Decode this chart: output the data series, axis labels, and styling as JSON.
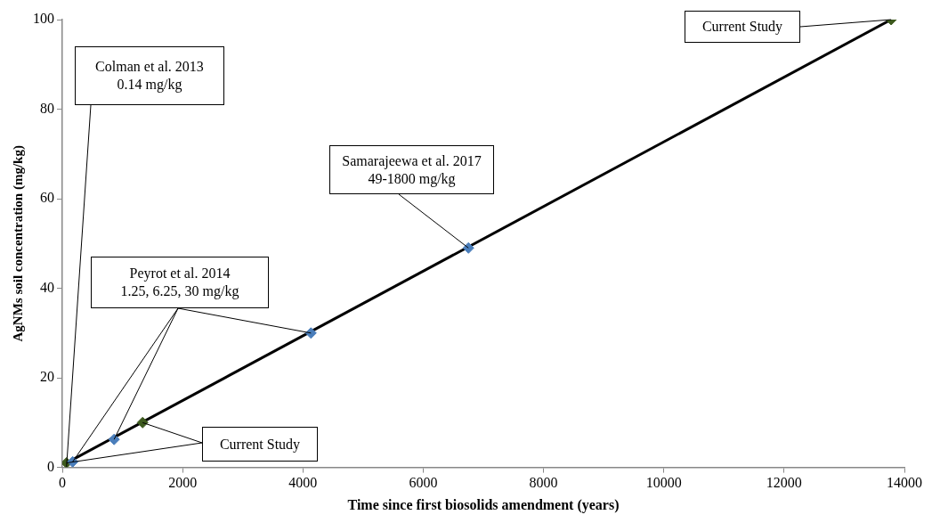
{
  "chart_data": {
    "type": "scatter",
    "xlabel": "Time since first biosolids amendment (years)",
    "ylabel": "AgNMs soil concentration (mg/kg)",
    "xlim": [
      0,
      14000
    ],
    "xticks": [
      0,
      2000,
      4000,
      6000,
      8000,
      10000,
      12000,
      14000
    ],
    "ylim": [
      0,
      100
    ],
    "yticks": [
      0,
      20,
      40,
      60,
      80,
      100
    ],
    "grid": false,
    "legend": false,
    "marker": "diamond",
    "series": [
      {
        "type": "line",
        "color": "#000000",
        "marker": "none",
        "x": [
          70,
          13780
        ],
        "values": [
          1,
          100
        ]
      },
      {
        "type": "scatter",
        "color": "#4a7ebb",
        "x": [
          172,
          861,
          4134,
          6752
        ],
        "values": [
          1.25,
          6.25,
          30,
          49
        ]
      },
      {
        "type": "scatter",
        "color": "#3d5a1e",
        "x": [
          70,
          1335,
          13780
        ],
        "values": [
          1,
          10,
          100
        ]
      }
    ],
    "annotations": [
      {
        "text": "Colman et al. 2013\n0.14 mg/kg",
        "x": 70,
        "y": 0.14
      },
      {
        "text": "Peyrot et al. 2014\n1.25, 6.25, 30 mg/kg",
        "x": 4134,
        "y": 30
      },
      {
        "text": "Samarajeewa et al. 2017\n49-1800 mg/kg",
        "x": 6752,
        "y": 49
      },
      {
        "text": "Current Study",
        "x": 1335,
        "y": 10
      },
      {
        "text": "Current Study",
        "x": 13780,
        "y": 100
      }
    ]
  }
}
